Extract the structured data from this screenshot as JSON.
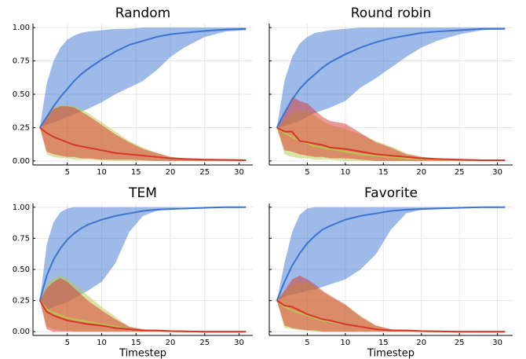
{
  "chart_data": [
    {
      "type": "line",
      "title": "Random",
      "x": [
        1,
        2,
        3,
        4,
        5,
        6,
        7,
        8,
        10,
        12,
        14,
        16,
        18,
        20,
        22,
        25,
        28,
        31
      ],
      "xlim": [
        0,
        32
      ],
      "xticks": [
        5,
        10,
        15,
        20,
        25,
        30
      ],
      "ylim": [
        -0.03,
        1.03
      ],
      "yticks": [
        {
          "value": 0,
          "label": "0.00"
        },
        {
          "value": 0.25,
          "label": "0.25"
        },
        {
          "value": 0.5,
          "label": "0.50"
        },
        {
          "value": 0.75,
          "label": "0.75"
        },
        {
          "value": 1,
          "label": "1.00"
        }
      ],
      "grid": true,
      "series": [
        {
          "color": "#3b75d1",
          "values": [
            0.25,
            0.33,
            0.41,
            0.48,
            0.54,
            0.6,
            0.65,
            0.69,
            0.76,
            0.82,
            0.87,
            0.9,
            0.93,
            0.95,
            0.96,
            0.975,
            0.985,
            0.99
          ],
          "lower": [
            0.25,
            0.27,
            0.29,
            0.31,
            0.33,
            0.35,
            0.37,
            0.39,
            0.44,
            0.5,
            0.55,
            0.6,
            0.68,
            0.78,
            0.85,
            0.93,
            0.97,
            0.98
          ],
          "upper": [
            0.25,
            0.58,
            0.75,
            0.85,
            0.91,
            0.94,
            0.96,
            0.97,
            0.98,
            0.99,
            0.99,
            1,
            1,
            1,
            1,
            1,
            1,
            1
          ]
        },
        {
          "color": "#b7c74a",
          "values": [
            0.25,
            0.21,
            0.18,
            0.16,
            0.14,
            0.12,
            0.11,
            0.1,
            0.08,
            0.06,
            0.05,
            0.04,
            0.03,
            0.02,
            0.015,
            0.01,
            0.008,
            0.005
          ],
          "lower": [
            0.25,
            0.05,
            0.03,
            0.02,
            0.02,
            0.01,
            0.01,
            0.01,
            0.005,
            0,
            0,
            0,
            0,
            0,
            0,
            0,
            0,
            0
          ],
          "upper": [
            0.25,
            0.33,
            0.4,
            0.42,
            0.42,
            0.41,
            0.39,
            0.36,
            0.29,
            0.22,
            0.15,
            0.1,
            0.06,
            0.03,
            0.02,
            0.01,
            0.01,
            0.01
          ]
        },
        {
          "color": "#d9342b",
          "values": [
            0.25,
            0.21,
            0.18,
            0.16,
            0.14,
            0.12,
            0.11,
            0.1,
            0.08,
            0.06,
            0.05,
            0.04,
            0.03,
            0.02,
            0.015,
            0.01,
            0.008,
            0.005
          ],
          "lower": [
            0.25,
            0.07,
            0.05,
            0.04,
            0.03,
            0.03,
            0.02,
            0.02,
            0.01,
            0.01,
            0.01,
            0.005,
            0,
            0,
            0,
            0,
            0,
            0
          ],
          "upper": [
            0.25,
            0.33,
            0.39,
            0.41,
            0.41,
            0.4,
            0.37,
            0.34,
            0.27,
            0.2,
            0.14,
            0.09,
            0.06,
            0.03,
            0.02,
            0.01,
            0.01,
            0.01
          ]
        }
      ]
    },
    {
      "type": "line",
      "title": "Round robin",
      "x": [
        1,
        2,
        3,
        4,
        5,
        6,
        7,
        8,
        10,
        12,
        14,
        16,
        18,
        20,
        22,
        25,
        28,
        31
      ],
      "xlim": [
        0,
        32
      ],
      "xticks": [
        5,
        10,
        15,
        20,
        25,
        30
      ],
      "ylim": [
        -0.03,
        1.03
      ],
      "yticks": [
        0,
        0.25,
        0.5,
        0.75,
        1
      ],
      "ytick_labels": false,
      "grid": true,
      "series": [
        {
          "color": "#3b75d1",
          "values": [
            0.25,
            0.36,
            0.46,
            0.54,
            0.6,
            0.65,
            0.7,
            0.74,
            0.8,
            0.85,
            0.89,
            0.92,
            0.94,
            0.96,
            0.97,
            0.98,
            0.99,
            0.99
          ],
          "lower": [
            0.25,
            0.26,
            0.28,
            0.3,
            0.33,
            0.36,
            0.38,
            0.4,
            0.45,
            0.55,
            0.62,
            0.7,
            0.78,
            0.85,
            0.9,
            0.95,
            0.98,
            0.99
          ],
          "upper": [
            0.25,
            0.6,
            0.78,
            0.88,
            0.93,
            0.96,
            0.97,
            0.98,
            0.99,
            1,
            1,
            1,
            1,
            1,
            1,
            1,
            1,
            1
          ]
        },
        {
          "color": "#b7c74a",
          "values": [
            0.25,
            0.21,
            0.18,
            0.15,
            0.13,
            0.11,
            0.1,
            0.09,
            0.07,
            0.05,
            0.04,
            0.03,
            0.02,
            0.015,
            0.01,
            0.008,
            0.005,
            0.005
          ],
          "lower": [
            0.25,
            0.05,
            0.03,
            0.02,
            0.02,
            0.01,
            0.01,
            0.01,
            0,
            0,
            0,
            0,
            0,
            0,
            0,
            0,
            0,
            0
          ],
          "upper": [
            0.25,
            0.3,
            0.36,
            0.38,
            0.37,
            0.34,
            0.3,
            0.27,
            0.24,
            0.2,
            0.15,
            0.11,
            0.06,
            0.03,
            0.02,
            0.01,
            0.01,
            0.01
          ]
        },
        {
          "color": "#d9342b",
          "values": [
            0.25,
            0.22,
            0.22,
            0.15,
            0.14,
            0.13,
            0.12,
            0.1,
            0.09,
            0.07,
            0.05,
            0.04,
            0.03,
            0.02,
            0.015,
            0.01,
            0.005,
            0.005
          ],
          "lower": [
            0.25,
            0.08,
            0.07,
            0.05,
            0.04,
            0.03,
            0.03,
            0.02,
            0.02,
            0.01,
            0,
            0,
            0,
            0,
            0,
            0,
            0,
            0
          ],
          "upper": [
            0.25,
            0.35,
            0.48,
            0.45,
            0.43,
            0.38,
            0.33,
            0.3,
            0.28,
            0.21,
            0.14,
            0.1,
            0.05,
            0.03,
            0.02,
            0.01,
            0.01,
            0.01
          ]
        }
      ]
    },
    {
      "type": "line",
      "title": "TEM",
      "x_label": "Timestep",
      "x": [
        1,
        2,
        3,
        4,
        5,
        6,
        7,
        8,
        10,
        12,
        14,
        16,
        18,
        20,
        22,
        25,
        28,
        31
      ],
      "xlim": [
        0,
        32
      ],
      "xticks": [
        5,
        10,
        15,
        20,
        25,
        30
      ],
      "ylim": [
        -0.03,
        1.03
      ],
      "yticks": [
        {
          "value": 0,
          "label": "0.00"
        },
        {
          "value": 0.25,
          "label": "0.25"
        },
        {
          "value": 0.5,
          "label": "0.50"
        },
        {
          "value": 0.75,
          "label": "0.75"
        },
        {
          "value": 1,
          "label": "1.00"
        }
      ],
      "grid": true,
      "series": [
        {
          "color": "#3b75d1",
          "values": [
            0.25,
            0.45,
            0.58,
            0.67,
            0.74,
            0.79,
            0.83,
            0.86,
            0.9,
            0.93,
            0.95,
            0.97,
            0.98,
            0.985,
            0.99,
            0.995,
            1,
            1
          ],
          "lower": [
            0.25,
            0.18,
            0.2,
            0.22,
            0.24,
            0.27,
            0.3,
            0.33,
            0.4,
            0.55,
            0.8,
            0.93,
            0.97,
            0.99,
            1,
            1,
            1,
            1
          ],
          "upper": [
            0.25,
            0.7,
            0.88,
            0.96,
            0.99,
            1,
            1,
            1,
            1,
            1,
            1,
            1,
            1,
            1,
            1,
            1,
            1,
            1
          ]
        },
        {
          "color": "#b7c74a",
          "values": [
            0.25,
            0.18,
            0.15,
            0.13,
            0.11,
            0.1,
            0.09,
            0.08,
            0.06,
            0.04,
            0.02,
            0.01,
            0.01,
            0.005,
            0.003,
            0,
            0,
            0
          ],
          "lower": [
            0.25,
            0.04,
            0.02,
            0.01,
            0.01,
            0,
            0,
            0,
            0,
            0,
            0,
            0,
            0,
            0,
            0,
            0,
            0,
            0
          ],
          "upper": [
            0.25,
            0.38,
            0.43,
            0.45,
            0.43,
            0.38,
            0.34,
            0.29,
            0.2,
            0.12,
            0.04,
            0.02,
            0.01,
            0.01,
            0.005,
            0,
            0,
            0
          ]
        },
        {
          "color": "#d9342b",
          "values": [
            0.25,
            0.16,
            0.13,
            0.11,
            0.09,
            0.08,
            0.07,
            0.06,
            0.05,
            0.03,
            0.02,
            0.01,
            0.01,
            0.005,
            0.003,
            0,
            0,
            0
          ],
          "lower": [
            0.25,
            0.02,
            0,
            0,
            0,
            0,
            0,
            0,
            0,
            0,
            0,
            0,
            0,
            0,
            0,
            0,
            0,
            0
          ],
          "upper": [
            0.25,
            0.35,
            0.4,
            0.43,
            0.4,
            0.35,
            0.3,
            0.25,
            0.17,
            0.1,
            0.04,
            0.02,
            0.01,
            0.01,
            0.005,
            0,
            0,
            0
          ]
        }
      ]
    },
    {
      "type": "line",
      "title": "Favorite",
      "x_label": "Timestep",
      "x": [
        1,
        2,
        3,
        4,
        5,
        6,
        7,
        8,
        10,
        12,
        14,
        16,
        18,
        20,
        22,
        25,
        28,
        31
      ],
      "xlim": [
        0,
        32
      ],
      "xticks": [
        5,
        10,
        15,
        20,
        25,
        30
      ],
      "ylim": [
        -0.03,
        1.03
      ],
      "yticks": [
        0,
        0.25,
        0.5,
        0.75,
        1
      ],
      "ytick_labels": false,
      "grid": true,
      "series": [
        {
          "color": "#3b75d1",
          "values": [
            0.25,
            0.4,
            0.53,
            0.63,
            0.71,
            0.77,
            0.82,
            0.85,
            0.9,
            0.93,
            0.95,
            0.97,
            0.98,
            0.985,
            0.99,
            0.995,
            1,
            1
          ],
          "lower": [
            0.25,
            0.28,
            0.3,
            0.31,
            0.33,
            0.34,
            0.36,
            0.38,
            0.42,
            0.5,
            0.62,
            0.82,
            0.95,
            0.98,
            0.99,
            1,
            1,
            1
          ],
          "upper": [
            0.25,
            0.55,
            0.8,
            0.94,
            0.99,
            1,
            1,
            1,
            1,
            1,
            1,
            1,
            1,
            1,
            1,
            1,
            1,
            1
          ]
        },
        {
          "color": "#b7c74a",
          "values": [
            0.25,
            0.2,
            0.17,
            0.15,
            0.13,
            0.11,
            0.09,
            0.08,
            0.06,
            0.04,
            0.02,
            0.01,
            0.01,
            0.005,
            0.003,
            0,
            0,
            0
          ],
          "lower": [
            0.25,
            0.03,
            0.02,
            0.01,
            0.01,
            0,
            0,
            0,
            0,
            0,
            0,
            0,
            0,
            0,
            0,
            0,
            0,
            0
          ],
          "upper": [
            0.25,
            0.32,
            0.38,
            0.4,
            0.39,
            0.36,
            0.32,
            0.28,
            0.21,
            0.13,
            0.05,
            0.02,
            0.01,
            0.01,
            0.005,
            0,
            0,
            0
          ]
        },
        {
          "color": "#d9342b",
          "values": [
            0.25,
            0.21,
            0.2,
            0.17,
            0.14,
            0.12,
            0.1,
            0.09,
            0.06,
            0.04,
            0.02,
            0.01,
            0.01,
            0.005,
            0.003,
            0,
            0,
            0
          ],
          "lower": [
            0.25,
            0.05,
            0.03,
            0.02,
            0.01,
            0.01,
            0,
            0,
            0,
            0,
            0,
            0,
            0,
            0,
            0,
            0,
            0,
            0
          ],
          "upper": [
            0.25,
            0.33,
            0.42,
            0.45,
            0.42,
            0.38,
            0.33,
            0.29,
            0.22,
            0.12,
            0.05,
            0.02,
            0.01,
            0.01,
            0.005,
            0,
            0,
            0
          ]
        }
      ]
    }
  ]
}
